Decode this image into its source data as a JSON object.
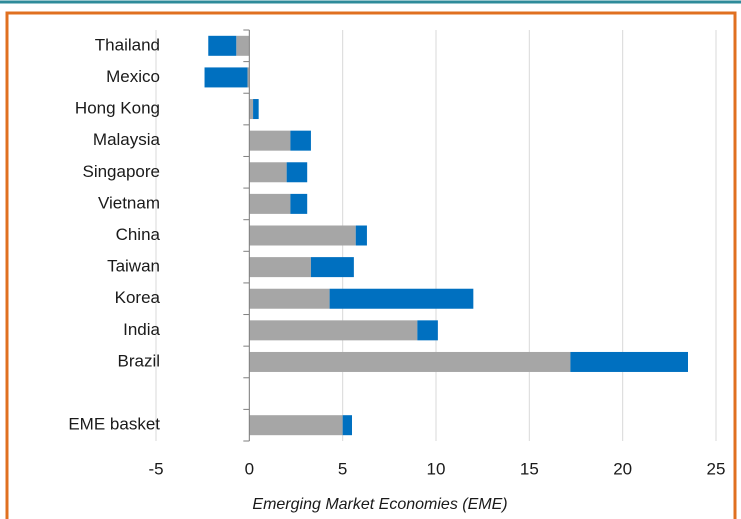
{
  "chart_data": {
    "type": "bar",
    "orientation": "horizontal",
    "stacked": true,
    "x_label": "Emerging Market Economies (EME)",
    "categories": [
      "Thailand",
      "Mexico",
      "Hong Kong",
      "Malaysia",
      "Singapore",
      "Vietnam",
      "China",
      "Taiwan",
      "Korea",
      "India",
      "Brazil",
      null,
      "EME basket"
    ],
    "series": [
      {
        "color": "#a6a6a6",
        "values": [
          -0.7,
          -0.1,
          0.2,
          2.2,
          2.0,
          2.2,
          5.7,
          3.3,
          4.3,
          9.0,
          17.2,
          null,
          5.0
        ]
      },
      {
        "color": "#0070c0",
        "values": [
          -1.5,
          -2.3,
          0.3,
          1.1,
          1.1,
          0.9,
          0.6,
          2.3,
          7.7,
          1.1,
          6.3,
          null,
          0.5
        ]
      }
    ],
    "xlim": [
      -5,
      25
    ],
    "xticks": [
      -5,
      0,
      5,
      10,
      15,
      20,
      25
    ],
    "grid": true
  }
}
